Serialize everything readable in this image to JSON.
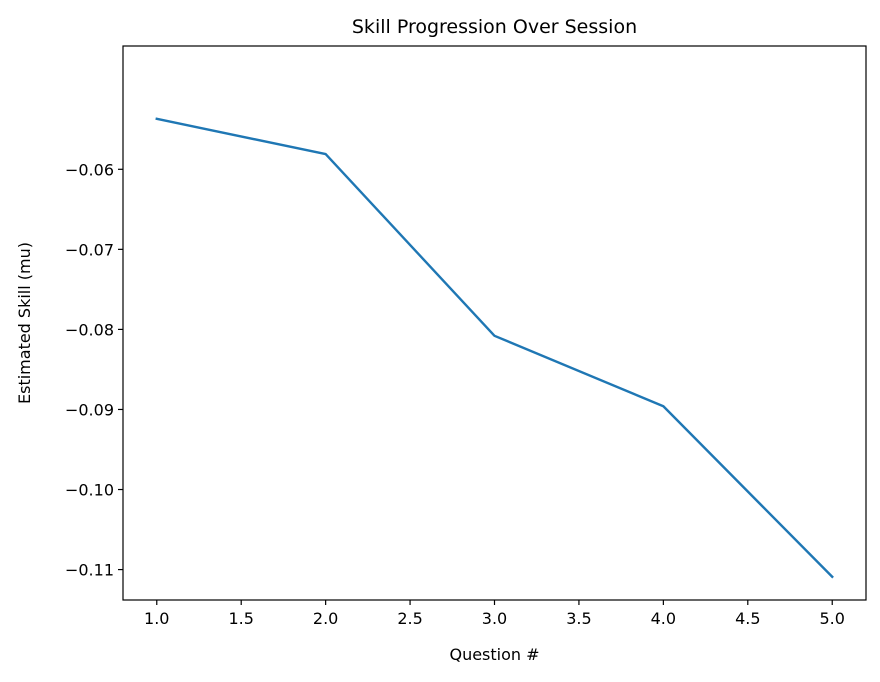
{
  "chart_data": {
    "type": "line",
    "title": "Skill Progression Over Session",
    "xlabel": "Question #",
    "ylabel": "Estimated Skill (mu)",
    "x": [
      1.0,
      2.0,
      3.0,
      4.0,
      5.0
    ],
    "series": [
      {
        "values": [
          -0.0537,
          -0.0581,
          -0.0808,
          -0.0896,
          -0.1109
        ],
        "color": "#1f77b4"
      }
    ],
    "xlim": [
      0.8,
      5.2
    ],
    "ylim": [
      -0.1138,
      -0.0446
    ],
    "xticks": [
      "1.0",
      "1.5",
      "2.0",
      "2.5",
      "3.0",
      "3.5",
      "4.0",
      "4.5",
      "5.0"
    ],
    "yticks": [
      "−0.06",
      "−0.07",
      "−0.08",
      "−0.09",
      "−0.10",
      "−0.11"
    ],
    "grid": false,
    "legend": "none"
  }
}
